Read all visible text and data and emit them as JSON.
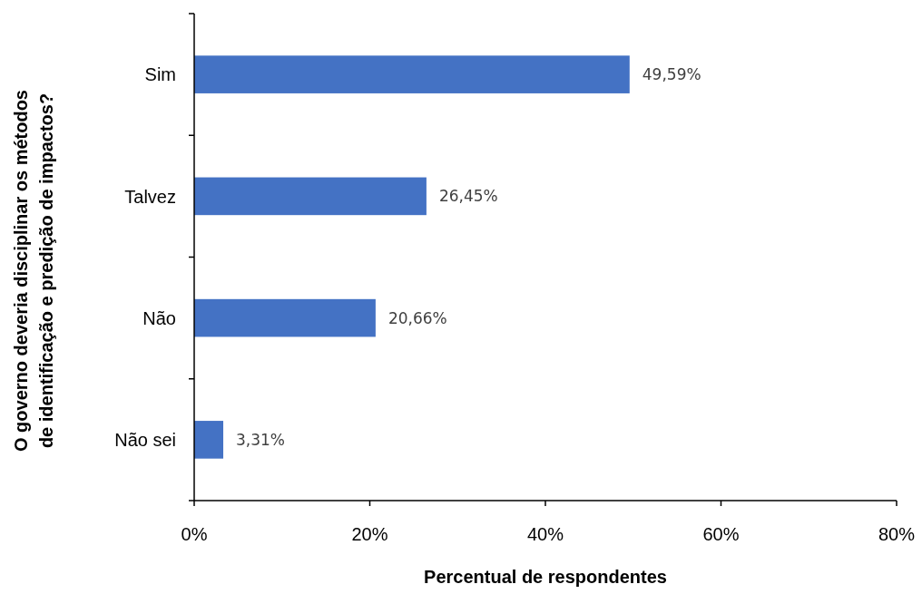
{
  "chart_data": {
    "type": "bar",
    "orientation": "horizontal",
    "xlabel": "Percentual de respondentes",
    "ylabel": "O governo deveria disciplinar os métodos\nde identificação e predição de impactos?",
    "categories": [
      "Sim",
      "Talvez",
      "Não",
      "Não sei"
    ],
    "values": [
      49.59,
      26.45,
      20.66,
      3.31
    ],
    "value_labels": [
      "49,59%",
      "26,45%",
      "20,66%",
      "3,31%"
    ],
    "color": "#4472c4",
    "xlim": [
      0,
      80
    ],
    "xticks": [
      {
        "value": 0,
        "label": "0%"
      },
      {
        "value": 20,
        "label": "20%"
      },
      {
        "value": 40,
        "label": "40%"
      },
      {
        "value": 60,
        "label": "60%"
      },
      {
        "value": 80,
        "label": "80%"
      }
    ]
  }
}
